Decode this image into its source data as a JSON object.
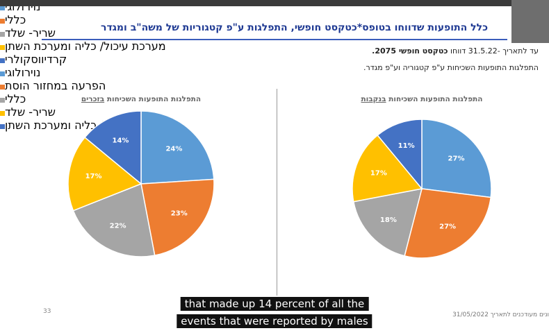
{
  "slide": {
    "title": "כלל התופעות שדווחו בטופס*כטקסט חופשי, התפלגות ע\"פ קטגוריות של משה\"ב ומגדר",
    "line1": "עד לתאריך -31.5.22 דווחו",
    "line1_bold": "כטקסט חופשי 2075.",
    "line2": "התפלגות התופעות השכיחות ע\"פ קטגוריה וע\"פ מגדר.",
    "page_number": "33",
    "footer": "ונים מעודכנים לתאריך 31/05/2022",
    "captions": [
      "that made up 14 percent of all the",
      "events that were reported by males"
    ]
  },
  "chart_data": [
    {
      "type": "pie",
      "title": "התפלגות התופעות השכיחות",
      "title_emphasis": "בזכרים",
      "categories": [
        "נוירולוגי",
        "כללי",
        "שריר- שלד",
        "מערכת עיכול/ כליה ומערכת השתן",
        "קרדיווסקולרי"
      ],
      "values": [
        24,
        23,
        22,
        17,
        14
      ],
      "value_labels": [
        "24%",
        "23%",
        "22%",
        "17%",
        "14%"
      ],
      "colors": [
        "#5b9bd5",
        "#ed7d31",
        "#a5a5a5",
        "#ffc000",
        "#4472c4"
      ]
    },
    {
      "type": "pie",
      "title": "התפלגות התופעות השכיחות",
      "title_emphasis": "בנקבות",
      "categories": [
        "נוירולוגי",
        "הפרעה במחזור הוסת",
        "כללי",
        "שריר- שלד",
        "מערכת עיכול/ כליה ומערכת השתן"
      ],
      "values": [
        27,
        27,
        18,
        17,
        11
      ],
      "value_labels": [
        "27%",
        "27%",
        "18%",
        "17%",
        "11%"
      ],
      "colors": [
        "#5b9bd5",
        "#ed7d31",
        "#a5a5a5",
        "#ffc000",
        "#4472c4"
      ]
    }
  ]
}
